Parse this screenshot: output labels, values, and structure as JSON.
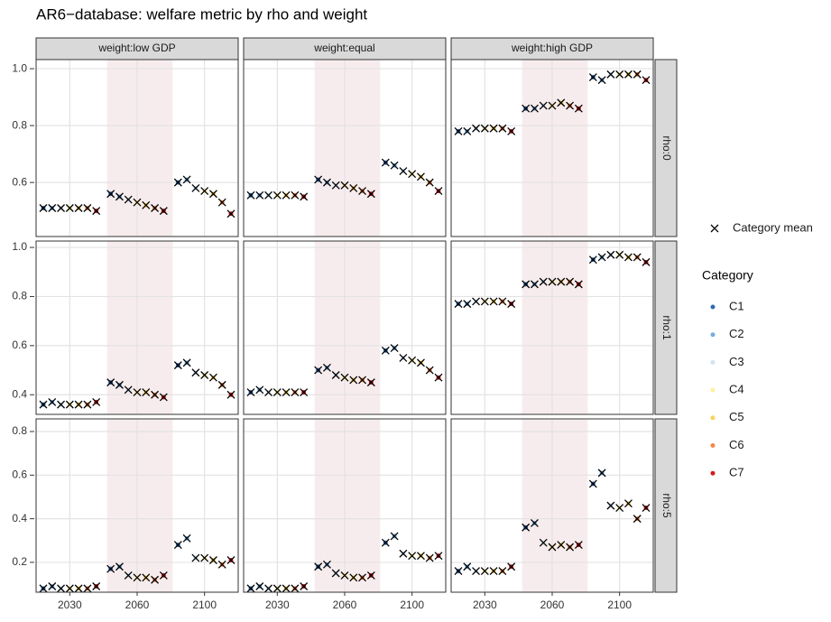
{
  "chart_data": {
    "type": "scatter",
    "title": "AR6−database: welfare metric by rho and weight",
    "groups": [
      "2030",
      "2060",
      "2100"
    ],
    "columns": [
      "weight:low GDP",
      "weight:equal",
      "weight:high GDP"
    ],
    "rows": [
      {
        "label": "rho:0",
        "ylim": [
          0.41,
          1.032
        ],
        "yticks": [
          0.6,
          0.8,
          {
            "value": 1,
            "label": "1.0"
          }
        ]
      },
      {
        "label": "rho:1",
        "ylim": [
          0.32,
          1.026
        ],
        "yticks": [
          0.4,
          0.6,
          0.8,
          {
            "value": 1,
            "label": "1.0"
          }
        ]
      },
      {
        "label": "rho:5",
        "ylim": [
          0.063,
          0.858
        ],
        "yticks": [
          0.2,
          0.4,
          0.6,
          0.8
        ]
      }
    ],
    "mean_label": "Category mean",
    "legend_title": "Category",
    "grid": true,
    "series": [
      {
        "name": "C1",
        "color": "#2c6db2"
      },
      {
        "name": "C2",
        "color": "#74aee0"
      },
      {
        "name": "C3",
        "color": "#cfe4f3"
      },
      {
        "name": "C4",
        "color": "#fff0a0"
      },
      {
        "name": "C5",
        "color": "#fdd35c"
      },
      {
        "name": "C6",
        "color": "#f4874a"
      },
      {
        "name": "C7",
        "color": "#d7191c"
      }
    ],
    "panels": [
      {
        "series": [
          {
            "values": [
              0.51,
              0.56,
              0.6
            ]
          },
          {
            "values": [
              0.51,
              0.55,
              0.61
            ]
          },
          {
            "values": [
              0.51,
              0.54,
              0.58
            ]
          },
          {
            "values": [
              0.51,
              0.53,
              0.57
            ]
          },
          {
            "values": [
              0.51,
              0.52,
              0.56
            ]
          },
          {
            "values": [
              0.51,
              0.51,
              0.53
            ]
          },
          {
            "values": [
              0.5,
              0.5,
              0.49
            ]
          }
        ]
      },
      {
        "series": [
          {
            "values": [
              0.555,
              0.61,
              0.67
            ]
          },
          {
            "values": [
              0.555,
              0.6,
              0.66
            ]
          },
          {
            "values": [
              0.555,
              0.59,
              0.64
            ]
          },
          {
            "values": [
              0.555,
              0.59,
              0.63
            ]
          },
          {
            "values": [
              0.555,
              0.58,
              0.62
            ]
          },
          {
            "values": [
              0.555,
              0.57,
              0.6
            ]
          },
          {
            "values": [
              0.55,
              0.56,
              0.57
            ]
          }
        ]
      },
      {
        "series": [
          {
            "values": [
              0.78,
              0.86,
              0.97
            ]
          },
          {
            "values": [
              0.78,
              0.86,
              0.96
            ]
          },
          {
            "values": [
              0.79,
              0.87,
              0.98
            ]
          },
          {
            "values": [
              0.79,
              0.87,
              0.98
            ]
          },
          {
            "values": [
              0.79,
              0.88,
              0.98
            ]
          },
          {
            "values": [
              0.79,
              0.87,
              0.98
            ]
          },
          {
            "values": [
              0.78,
              0.86,
              0.96
            ]
          }
        ]
      },
      {
        "series": [
          {
            "values": [
              0.36,
              0.45,
              0.52
            ]
          },
          {
            "values": [
              0.37,
              0.44,
              0.53
            ]
          },
          {
            "values": [
              0.36,
              0.42,
              0.49
            ]
          },
          {
            "values": [
              0.36,
              0.41,
              0.48
            ]
          },
          {
            "values": [
              0.36,
              0.41,
              0.47
            ]
          },
          {
            "values": [
              0.36,
              0.4,
              0.44
            ]
          },
          {
            "values": [
              0.37,
              0.39,
              0.4
            ]
          }
        ]
      },
      {
        "series": [
          {
            "values": [
              0.41,
              0.5,
              0.58
            ]
          },
          {
            "values": [
              0.42,
              0.51,
              0.59
            ]
          },
          {
            "values": [
              0.41,
              0.48,
              0.55
            ]
          },
          {
            "values": [
              0.41,
              0.47,
              0.54
            ]
          },
          {
            "values": [
              0.41,
              0.46,
              0.53
            ]
          },
          {
            "values": [
              0.41,
              0.46,
              0.5
            ]
          },
          {
            "values": [
              0.41,
              0.45,
              0.47
            ]
          }
        ]
      },
      {
        "series": [
          {
            "values": [
              0.77,
              0.85,
              0.95
            ]
          },
          {
            "values": [
              0.77,
              0.85,
              0.96
            ]
          },
          {
            "values": [
              0.78,
              0.86,
              0.97
            ]
          },
          {
            "values": [
              0.78,
              0.86,
              0.97
            ]
          },
          {
            "values": [
              0.78,
              0.86,
              0.96
            ]
          },
          {
            "values": [
              0.78,
              0.86,
              0.96
            ]
          },
          {
            "values": [
              0.77,
              0.85,
              0.94
            ]
          }
        ]
      },
      {
        "series": [
          {
            "values": [
              0.08,
              0.17,
              0.28
            ]
          },
          {
            "values": [
              0.09,
              0.18,
              0.31
            ]
          },
          {
            "values": [
              0.08,
              0.14,
              0.22
            ]
          },
          {
            "values": [
              0.08,
              0.13,
              0.22
            ]
          },
          {
            "values": [
              0.08,
              0.13,
              0.21
            ]
          },
          {
            "values": [
              0.08,
              0.12,
              0.19
            ]
          },
          {
            "values": [
              0.09,
              0.14,
              0.21
            ]
          }
        ]
      },
      {
        "series": [
          {
            "values": [
              0.08,
              0.18,
              0.29
            ]
          },
          {
            "values": [
              0.09,
              0.19,
              0.32
            ]
          },
          {
            "values": [
              0.08,
              0.15,
              0.24
            ]
          },
          {
            "values": [
              0.08,
              0.14,
              0.23
            ]
          },
          {
            "values": [
              0.08,
              0.13,
              0.23
            ]
          },
          {
            "values": [
              0.08,
              0.13,
              0.22
            ]
          },
          {
            "values": [
              0.09,
              0.14,
              0.23
            ]
          }
        ]
      },
      {
        "series": [
          {
            "values": [
              0.16,
              0.36,
              0.56
            ]
          },
          {
            "values": [
              0.18,
              0.38,
              0.61
            ]
          },
          {
            "values": [
              0.16,
              0.29,
              0.46
            ]
          },
          {
            "values": [
              0.16,
              0.27,
              0.45
            ]
          },
          {
            "values": [
              0.16,
              0.28,
              0.47
            ]
          },
          {
            "values": [
              0.16,
              0.27,
              0.4
            ]
          },
          {
            "values": [
              0.18,
              0.28,
              0.45
            ]
          }
        ]
      }
    ]
  }
}
